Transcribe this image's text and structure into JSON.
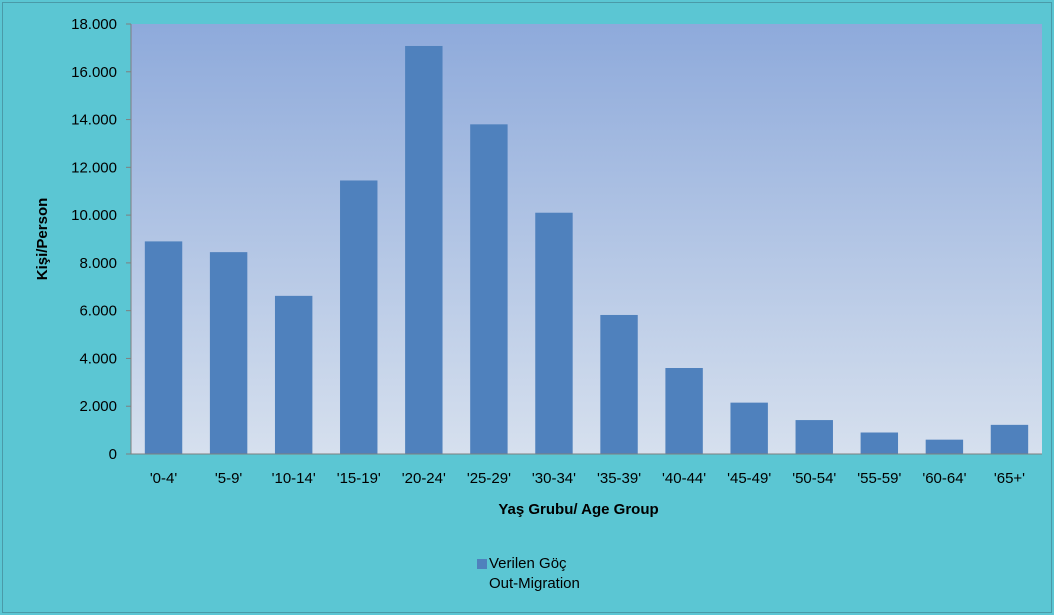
{
  "chart_data": {
    "type": "bar",
    "categories": [
      "'0-4'",
      "'5-9'",
      "'10-14'",
      "'15-19'",
      "'20-24'",
      "'25-29'",
      "'30-34'",
      "'35-39'",
      "'40-44'",
      "'45-49'",
      "'50-54'",
      "'55-59'",
      "'60-64'",
      "'65+'"
    ],
    "series": [
      {
        "name": "Verilen Göç",
        "name_en": "Out-Migration",
        "color": "#4f81bd",
        "values": [
          8900,
          8450,
          6620,
          11450,
          17080,
          13800,
          10100,
          5820,
          3600,
          2150,
          1420,
          900,
          600,
          1220
        ]
      }
    ],
    "xlabel": "Yaş Grubu/ Age Group",
    "ylabel": "Kişi/Person",
    "ylim": [
      0,
      18000
    ],
    "yticks": [
      "0",
      "2.000",
      "4.000",
      "6.000",
      "8.000",
      "10.000",
      "12.000",
      "14.000",
      "16.000",
      "18.000"
    ],
    "grid": false,
    "legend_position": "bottom",
    "colors": {
      "background": "#5bc6d3",
      "plot_top": "#8eaadb",
      "plot_bottom": "#d6e0ee",
      "bar": "#4f81bd"
    }
  }
}
